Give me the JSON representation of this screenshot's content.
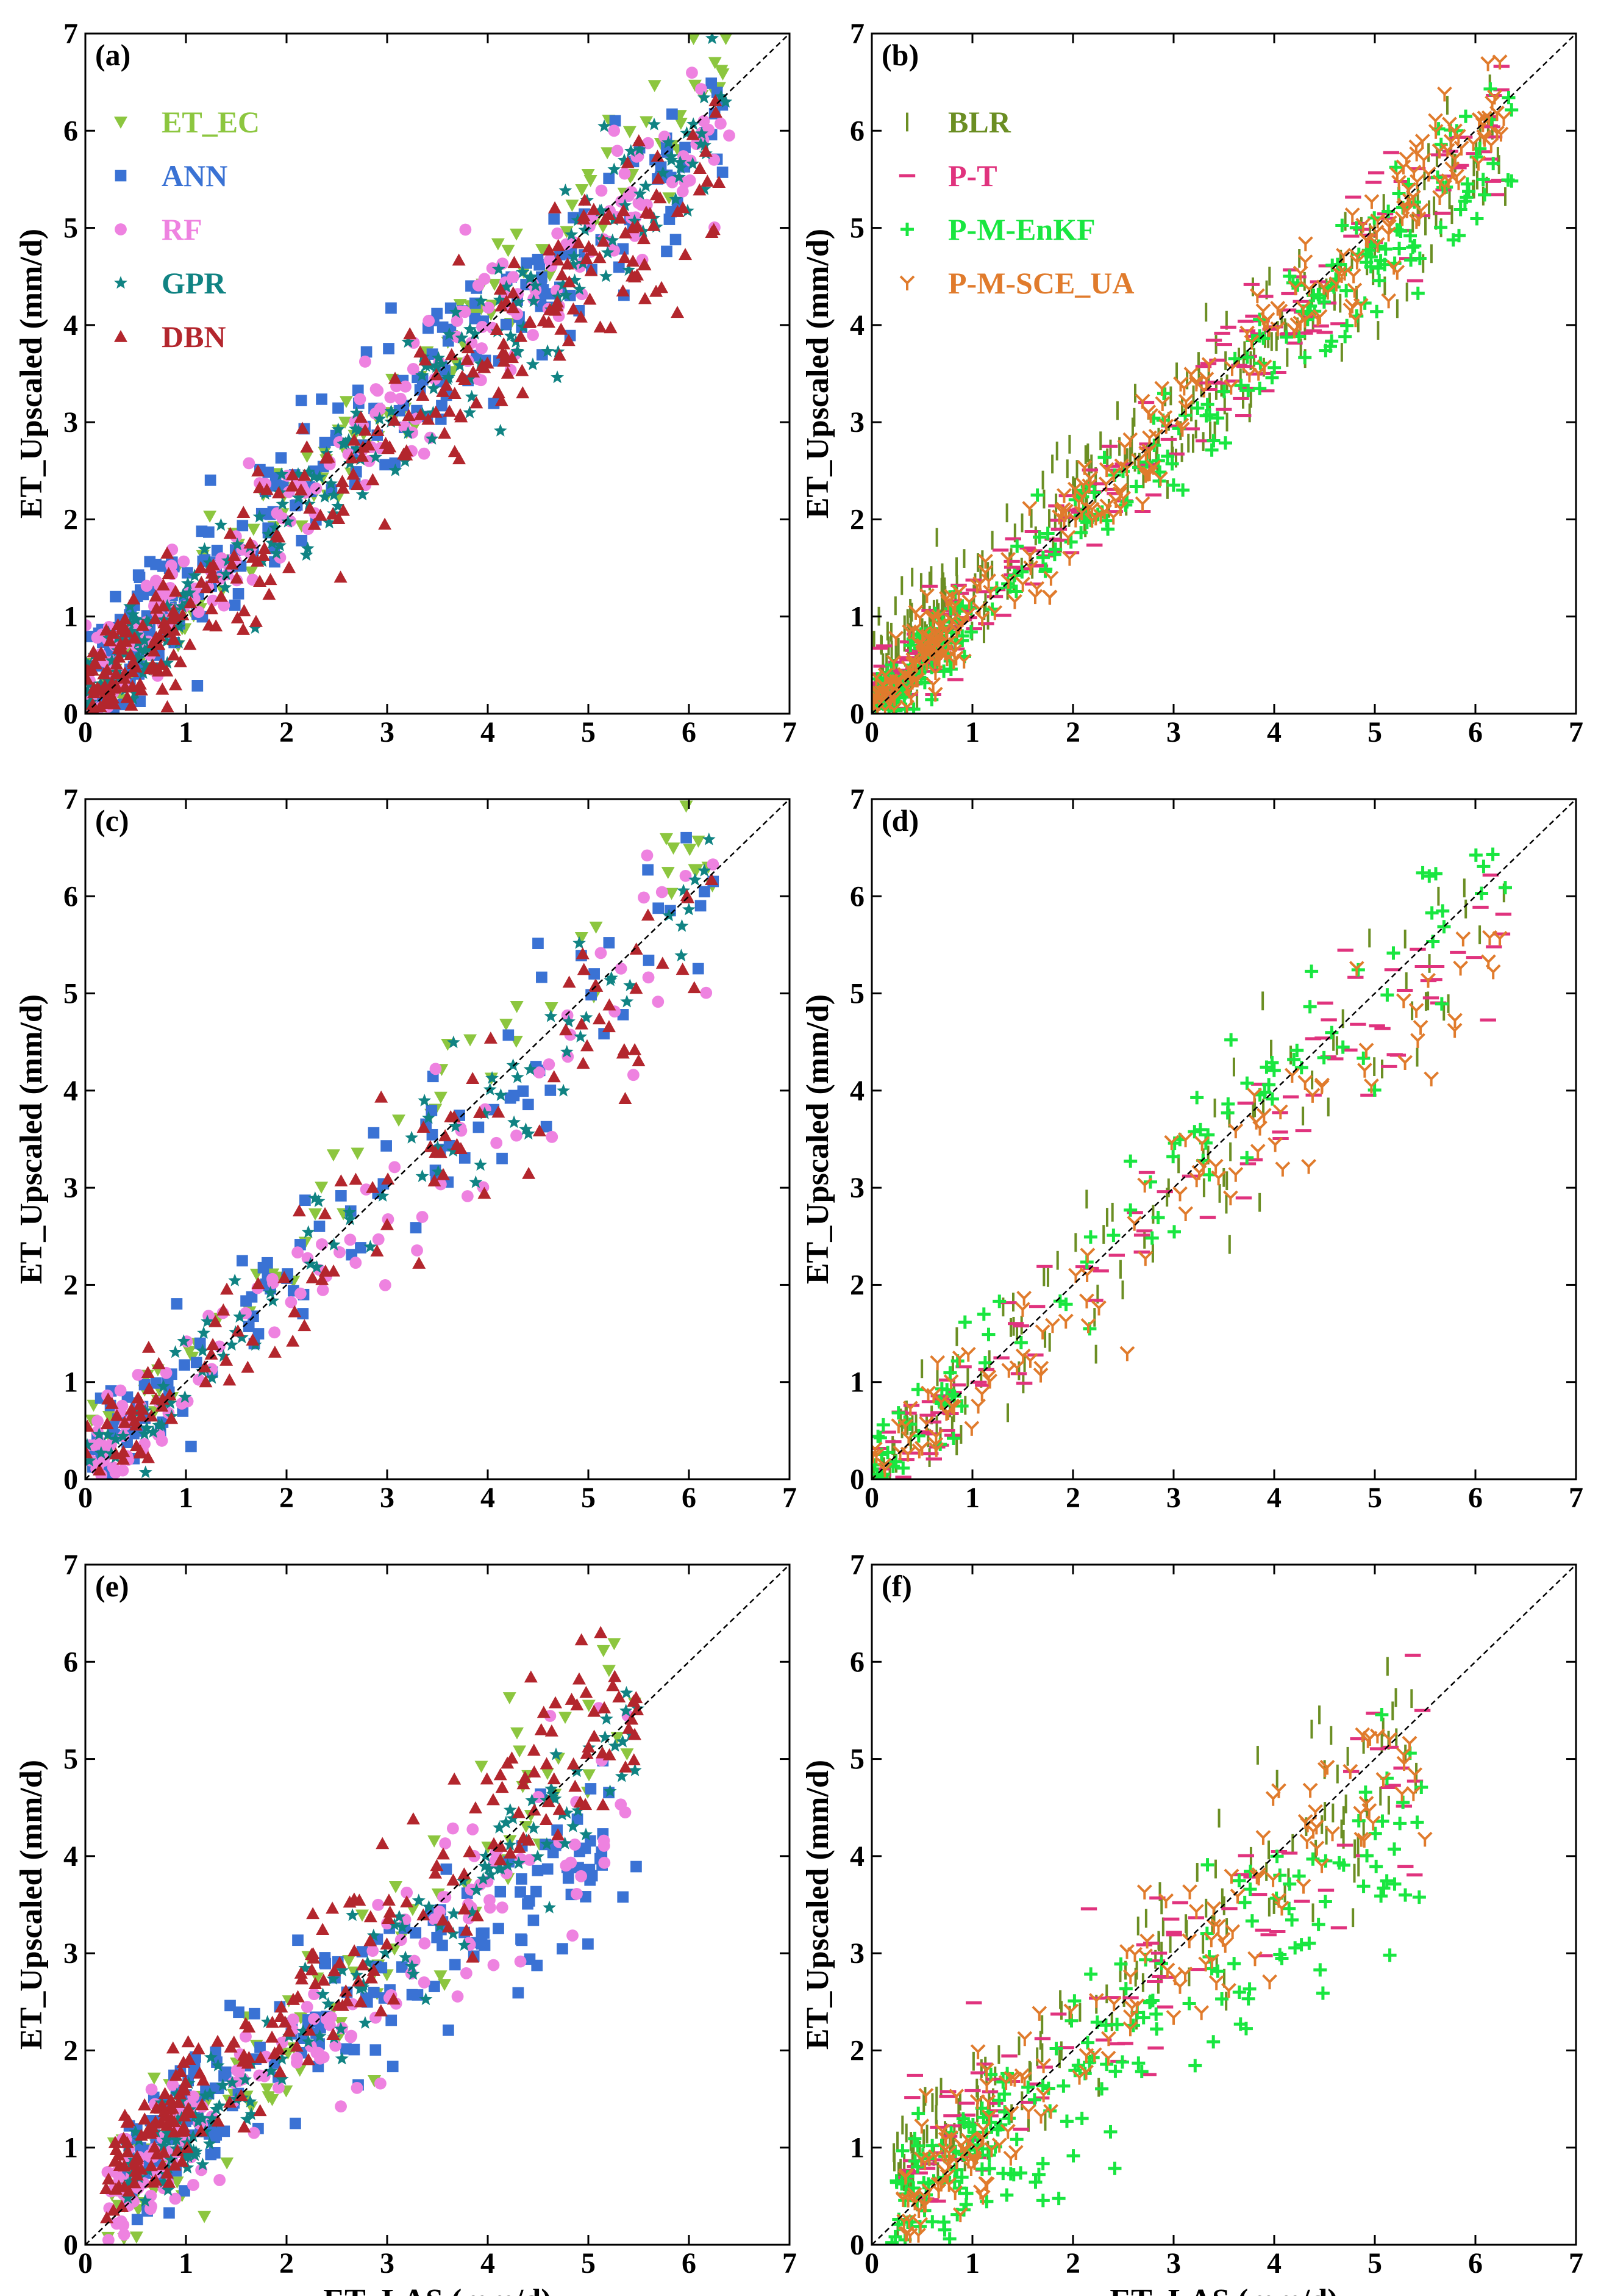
{
  "figure": {
    "colors": {
      "ET_EC": "#8cc63f",
      "ANN": "#3a72d4",
      "RF": "#ee82e0",
      "GPR": "#108383",
      "DBN": "#b3262d",
      "BLR": "#6b8e23",
      "P-T": "#e0337e",
      "P-M-EnKF": "#19e640",
      "P-M-SCE_UA": "#e07b2c"
    },
    "marker_icons": {
      "ET_EC": "triangle-down-icon",
      "ANN": "square-icon",
      "RF": "circle-icon",
      "GPR": "star-icon",
      "DBN": "triangle-up-icon",
      "BLR": "vertical-bar-icon",
      "P-T": "horizontal-bar-icon",
      "P-M-EnKF": "plus-icon",
      "P-M-SCE_UA": "tri-down-icon"
    }
  },
  "chart_data": [
    {
      "id": "a",
      "type": "scatter",
      "label": "(a)",
      "xlabel": "",
      "ylabel": "ET_Upscaled (mm/d)",
      "xlim": [
        0,
        7
      ],
      "ylim": [
        0,
        7
      ],
      "xticks": [
        "0",
        "1",
        "2",
        "3",
        "4",
        "5",
        "6",
        "7"
      ],
      "yticks": [
        "0",
        "1",
        "2",
        "3",
        "4",
        "5",
        "6",
        "7"
      ],
      "legend": [
        "ET_EC",
        "ANN",
        "RF",
        "GPR",
        "DBN"
      ],
      "legend_position": "top-left",
      "reference_line": "1:1",
      "series": [
        {
          "name": "ET_EC",
          "seed": 11,
          "n": 160,
          "xmin": 0.0,
          "xmax": 6.4,
          "slope": 1.03,
          "intercept": 0.1,
          "noise": 0.38
        },
        {
          "name": "ANN",
          "seed": 12,
          "n": 260,
          "xmin": 0.0,
          "xmax": 6.4,
          "slope": 0.9,
          "intercept": 0.35,
          "noise": 0.55
        },
        {
          "name": "RF",
          "seed": 13,
          "n": 230,
          "xmin": 0.0,
          "xmax": 6.4,
          "slope": 0.93,
          "intercept": 0.25,
          "noise": 0.45
        },
        {
          "name": "GPR",
          "seed": 14,
          "n": 220,
          "xmin": 0.0,
          "xmax": 6.4,
          "slope": 0.93,
          "intercept": 0.22,
          "noise": 0.42
        },
        {
          "name": "DBN",
          "seed": 15,
          "n": 300,
          "xmin": 0.0,
          "xmax": 6.4,
          "slope": 0.88,
          "intercept": 0.2,
          "noise": 0.5
        }
      ]
    },
    {
      "id": "b",
      "type": "scatter",
      "label": "(b)",
      "xlabel": "",
      "ylabel": "ET_Upscaled (mm/d)",
      "xlim": [
        0,
        7
      ],
      "ylim": [
        0,
        7
      ],
      "xticks": [
        "0",
        "1",
        "2",
        "3",
        "4",
        "5",
        "6",
        "7"
      ],
      "yticks": [
        "0",
        "1",
        "2",
        "3",
        "4",
        "5",
        "6",
        "7"
      ],
      "legend": [
        "BLR",
        "P-T",
        "P-M-EnKF",
        "P-M-SCE_UA"
      ],
      "legend_position": "top-left",
      "reference_line": "1:1",
      "series": [
        {
          "name": "BLR",
          "seed": 21,
          "n": 300,
          "xmin": 0.0,
          "xmax": 6.3,
          "slope": 0.86,
          "intercept": 0.45,
          "noise": 0.45
        },
        {
          "name": "P-T",
          "seed": 22,
          "n": 240,
          "xmin": 0.0,
          "xmax": 6.3,
          "slope": 0.95,
          "intercept": 0.1,
          "noise": 0.35
        },
        {
          "name": "P-M-EnKF",
          "seed": 23,
          "n": 260,
          "xmin": 0.0,
          "xmax": 6.4,
          "slope": 0.92,
          "intercept": 0.08,
          "noise": 0.32
        },
        {
          "name": "P-M-SCE_UA",
          "seed": 24,
          "n": 320,
          "xmin": 0.0,
          "xmax": 6.3,
          "slope": 0.97,
          "intercept": 0.08,
          "noise": 0.38
        }
      ]
    },
    {
      "id": "c",
      "type": "scatter",
      "label": "(c)",
      "xlabel": "",
      "ylabel": "ET_Upscaled (mm/d)",
      "xlim": [
        0,
        7
      ],
      "ylim": [
        0,
        7
      ],
      "xticks": [
        "0",
        "1",
        "2",
        "3",
        "4",
        "5",
        "6",
        "7"
      ],
      "yticks": [
        "0",
        "1",
        "2",
        "3",
        "4",
        "5",
        "6",
        "7"
      ],
      "legend": [],
      "reference_line": "1:1",
      "series": [
        {
          "name": "ET_EC",
          "seed": 31,
          "n": 55,
          "xmin": 0.0,
          "xmax": 6.3,
          "slope": 1.05,
          "intercept": 0.2,
          "noise": 0.35
        },
        {
          "name": "ANN",
          "seed": 32,
          "n": 110,
          "xmin": 0.0,
          "xmax": 6.3,
          "slope": 0.92,
          "intercept": 0.2,
          "noise": 0.5
        },
        {
          "name": "RF",
          "seed": 33,
          "n": 95,
          "xmin": 0.0,
          "xmax": 6.3,
          "slope": 0.92,
          "intercept": 0.05,
          "noise": 0.5
        },
        {
          "name": "GPR",
          "seed": 34,
          "n": 90,
          "xmin": 0.0,
          "xmax": 6.3,
          "slope": 0.93,
          "intercept": 0.15,
          "noise": 0.45
        },
        {
          "name": "DBN",
          "seed": 35,
          "n": 110,
          "xmin": 0.0,
          "xmax": 6.3,
          "slope": 0.9,
          "intercept": 0.15,
          "noise": 0.55
        }
      ]
    },
    {
      "id": "d",
      "type": "scatter",
      "label": "(d)",
      "xlabel": "",
      "ylabel": "ET_Upscaled (mm/d)",
      "xlim": [
        0,
        7
      ],
      "ylim": [
        0,
        7
      ],
      "xticks": [
        "0",
        "1",
        "2",
        "3",
        "4",
        "5",
        "6",
        "7"
      ],
      "yticks": [
        "0",
        "1",
        "2",
        "3",
        "4",
        "5",
        "6",
        "7"
      ],
      "legend": [],
      "reference_line": "1:1",
      "series": [
        {
          "name": "BLR",
          "seed": 41,
          "n": 110,
          "xmin": 0.0,
          "xmax": 6.3,
          "slope": 0.92,
          "intercept": 0.15,
          "noise": 0.55
        },
        {
          "name": "P-T",
          "seed": 42,
          "n": 100,
          "xmin": 0.0,
          "xmax": 6.3,
          "slope": 0.92,
          "intercept": 0.1,
          "noise": 0.45
        },
        {
          "name": "P-M-EnKF",
          "seed": 43,
          "n": 95,
          "xmin": 0.0,
          "xmax": 6.3,
          "slope": 1.0,
          "intercept": 0.1,
          "noise": 0.45
        },
        {
          "name": "P-M-SCE_UA",
          "seed": 44,
          "n": 100,
          "xmin": 0.0,
          "xmax": 6.3,
          "slope": 0.88,
          "intercept": 0.05,
          "noise": 0.45
        }
      ]
    },
    {
      "id": "e",
      "type": "scatter",
      "label": "(e)",
      "xlabel": "ET_LAS (mm/d)",
      "ylabel": "ET_Upscaled (mm/d)",
      "xlim": [
        0,
        7
      ],
      "ylim": [
        0,
        7
      ],
      "xticks": [
        "0",
        "1",
        "2",
        "3",
        "4",
        "5",
        "6",
        "7"
      ],
      "yticks": [
        "0",
        "1",
        "2",
        "3",
        "4",
        "5",
        "6",
        "7"
      ],
      "legend": [],
      "reference_line": "1:1",
      "series": [
        {
          "name": "ET_EC",
          "seed": 51,
          "n": 110,
          "xmin": 0.2,
          "xmax": 5.5,
          "slope": 1.0,
          "intercept": 0.05,
          "noise": 0.55
        },
        {
          "name": "ANN",
          "seed": 52,
          "n": 200,
          "xmin": 0.4,
          "xmax": 5.5,
          "slope": 0.72,
          "intercept": 0.55,
          "noise": 0.55
        },
        {
          "name": "RF",
          "seed": 53,
          "n": 170,
          "xmin": 0.2,
          "xmax": 5.5,
          "slope": 0.8,
          "intercept": 0.35,
          "noise": 0.55
        },
        {
          "name": "GPR",
          "seed": 54,
          "n": 150,
          "xmin": 0.4,
          "xmax": 5.5,
          "slope": 0.88,
          "intercept": 0.35,
          "noise": 0.45
        },
        {
          "name": "DBN",
          "seed": 55,
          "n": 230,
          "xmin": 0.2,
          "xmax": 5.5,
          "slope": 0.95,
          "intercept": 0.45,
          "noise": 0.5
        }
      ]
    },
    {
      "id": "f",
      "type": "scatter",
      "label": "(f)",
      "xlabel": "ET_LAS (mm/d)",
      "ylabel": "ET_Upscaled (mm/d)",
      "xlim": [
        0,
        7
      ],
      "ylim": [
        0,
        7
      ],
      "xticks": [
        "0",
        "1",
        "2",
        "3",
        "4",
        "5",
        "6",
        "7"
      ],
      "yticks": [
        "0",
        "1",
        "2",
        "3",
        "4",
        "5",
        "6",
        "7"
      ],
      "legend": [],
      "reference_line": "1:1",
      "series": [
        {
          "name": "BLR",
          "seed": 61,
          "n": 170,
          "xmin": 0.2,
          "xmax": 5.5,
          "slope": 0.85,
          "intercept": 0.6,
          "noise": 0.55
        },
        {
          "name": "P-T",
          "seed": 62,
          "n": 110,
          "xmin": 0.3,
          "xmax": 5.5,
          "slope": 0.85,
          "intercept": 0.4,
          "noise": 0.55
        },
        {
          "name": "P-M-EnKF",
          "seed": 63,
          "n": 200,
          "xmin": 0.2,
          "xmax": 5.5,
          "slope": 0.82,
          "intercept": 0.05,
          "noise": 0.6
        },
        {
          "name": "P-M-SCE_UA",
          "seed": 64,
          "n": 170,
          "xmin": 0.3,
          "xmax": 5.5,
          "slope": 0.92,
          "intercept": 0.1,
          "noise": 0.55
        }
      ]
    }
  ]
}
